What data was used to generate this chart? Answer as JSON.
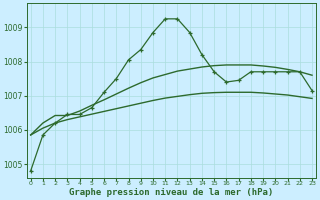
{
  "hours": [
    0,
    1,
    2,
    3,
    4,
    5,
    6,
    7,
    8,
    9,
    10,
    11,
    12,
    13,
    14,
    15,
    16,
    17,
    18,
    19,
    20,
    21,
    22,
    23
  ],
  "line1": [
    1004.8,
    1005.85,
    1006.2,
    1006.45,
    1006.45,
    1006.65,
    1007.1,
    1007.5,
    1008.05,
    1008.35,
    1008.85,
    1009.25,
    1009.25,
    1008.85,
    1008.2,
    1007.7,
    1007.4,
    1007.45,
    1007.7,
    1007.7,
    1007.7,
    1007.7,
    1007.7,
    1007.15
  ],
  "line2": [
    1005.85,
    1006.2,
    1006.42,
    1006.42,
    1006.55,
    1006.72,
    1006.88,
    1007.05,
    1007.22,
    1007.38,
    1007.52,
    1007.62,
    1007.72,
    1007.78,
    1007.84,
    1007.88,
    1007.9,
    1007.9,
    1007.9,
    1007.87,
    1007.83,
    1007.77,
    1007.7,
    1007.6
  ],
  "line3": [
    1005.85,
    1006.05,
    1006.2,
    1006.3,
    1006.38,
    1006.46,
    1006.54,
    1006.62,
    1006.7,
    1006.78,
    1006.86,
    1006.93,
    1006.98,
    1007.03,
    1007.07,
    1007.09,
    1007.1,
    1007.1,
    1007.1,
    1007.08,
    1007.05,
    1007.02,
    1006.97,
    1006.92
  ],
  "line_color": "#2d6a2d",
  "background_color": "#cceeff",
  "grid_color": "#aadddd",
  "xlabel": "Graphe pression niveau de la mer (hPa)",
  "ylim": [
    1004.6,
    1009.7
  ],
  "yticks": [
    1005,
    1006,
    1007,
    1008,
    1009
  ],
  "xlim": [
    -0.3,
    23.3
  ],
  "xticks": [
    0,
    1,
    2,
    3,
    4,
    5,
    6,
    7,
    8,
    9,
    10,
    11,
    12,
    13,
    14,
    15,
    16,
    17,
    18,
    19,
    20,
    21,
    22,
    23
  ]
}
